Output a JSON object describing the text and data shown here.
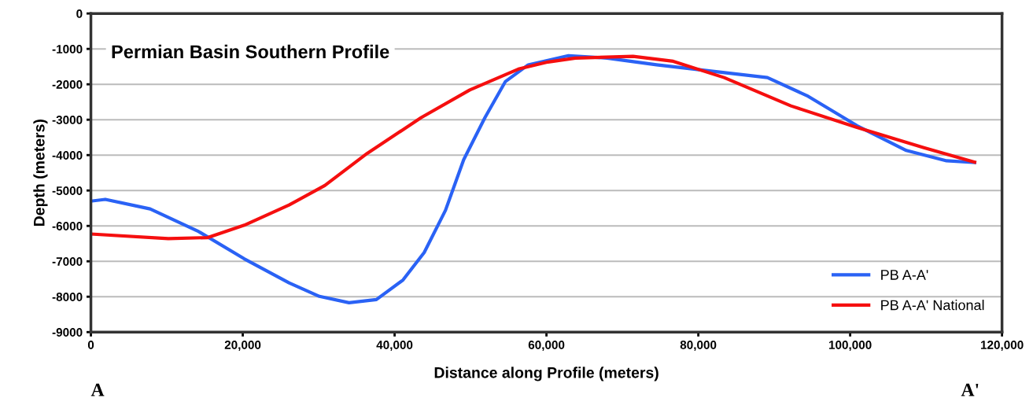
{
  "chart_data": {
    "type": "line",
    "title": "Permian Basin Southern Profile",
    "xlabel": "Distance along Profile (meters)",
    "ylabel": "Depth (meters)",
    "annotations": [
      "A",
      "A'"
    ],
    "series": [
      {
        "name": "PB A-A'",
        "color": "#2a62f5",
        "x": [
          0,
          1900,
          7800,
          14200,
          20200,
          26100,
          30100,
          34000,
          37600,
          41100,
          43900,
          46700,
          49100,
          51900,
          54600,
          57600,
          62900,
          68000,
          74500,
          81000,
          89100,
          94300,
          100900,
          107400,
          112700,
          116400
        ],
        "values": [
          -5300,
          -5250,
          -5520,
          -6160,
          -6930,
          -7610,
          -7990,
          -8170,
          -8080,
          -7530,
          -6750,
          -5560,
          -4130,
          -2940,
          -1920,
          -1450,
          -1190,
          -1260,
          -1450,
          -1610,
          -1810,
          -2320,
          -3170,
          -3870,
          -4160,
          -4210
        ]
      },
      {
        "name": "PB A-A' National",
        "color": "#f50f0f",
        "x": [
          0,
          10200,
          15400,
          20200,
          26100,
          30800,
          36400,
          43500,
          49900,
          56300,
          60200,
          63800,
          71400,
          76700,
          83400,
          92200,
          100900,
          109700,
          116400
        ],
        "values": [
          -6230,
          -6360,
          -6330,
          -5980,
          -5410,
          -4860,
          -3950,
          -2940,
          -2160,
          -1570,
          -1370,
          -1260,
          -1210,
          -1350,
          -1810,
          -2610,
          -3220,
          -3790,
          -4200
        ]
      }
    ],
    "xlim": [
      0,
      120000
    ],
    "xticks": [
      0,
      {
        "value": 20000,
        "label": "20,000"
      },
      {
        "value": 40000,
        "label": "40,000"
      },
      {
        "value": 60000,
        "label": "60,000"
      },
      {
        "value": 80000,
        "label": "80,000"
      },
      {
        "value": 100000,
        "label": "100,000"
      },
      {
        "value": 120000,
        "label": "120,000"
      }
    ],
    "ylim": [
      -9000,
      0
    ],
    "yticks": [
      -9000,
      -8000,
      -7000,
      -6000,
      -5000,
      -4000,
      -3000,
      -2000,
      -1000,
      0
    ],
    "grid": "y",
    "legend": "bottom right",
    "marker": "none",
    "line_style": "solid"
  }
}
